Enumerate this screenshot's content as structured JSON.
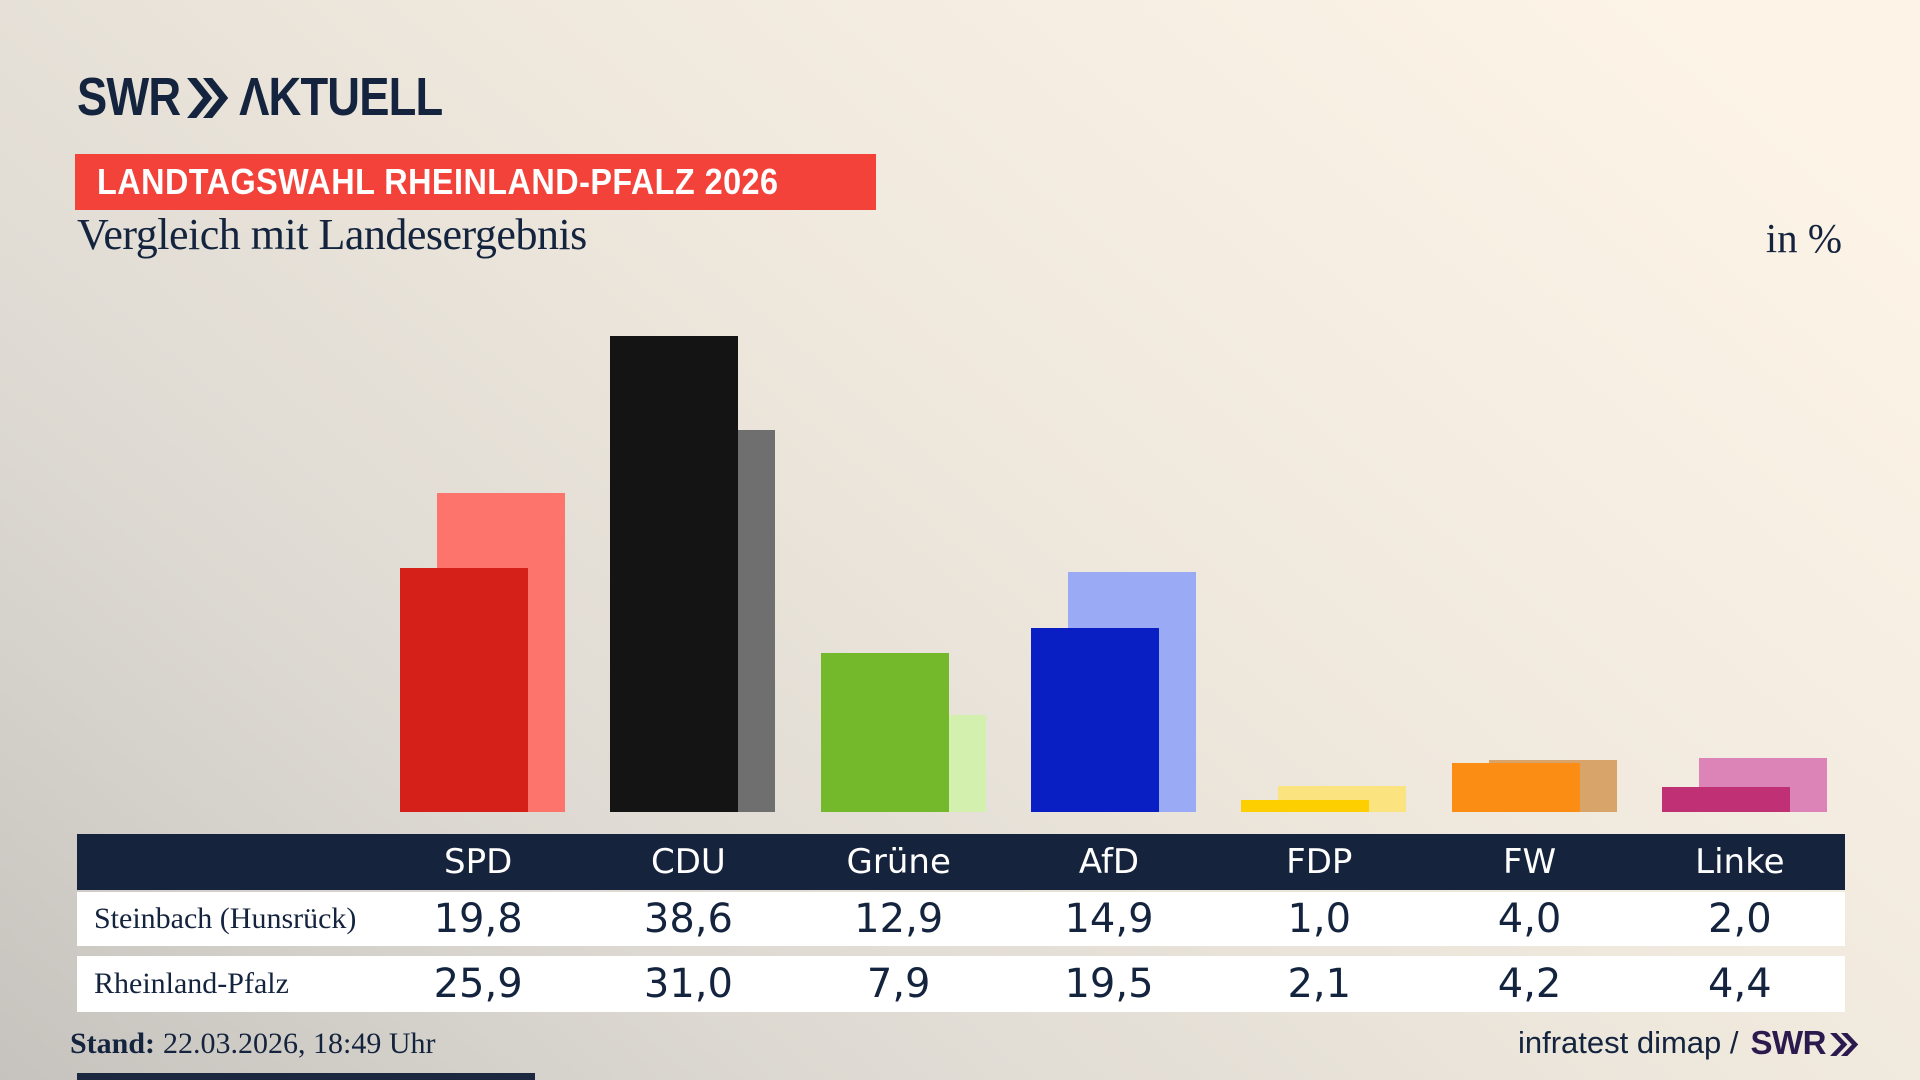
{
  "header": {
    "logo": {
      "brand": "SWR",
      "suffix": "ΛKTUELL",
      "chevron_icon": "double-chevron-right",
      "color": "#14243e"
    },
    "badge": {
      "text": "LANDTAGSWAHL RHEINLAND-PFALZ 2026",
      "background": "#f2423a",
      "text_color": "#ffffff"
    },
    "title": "Vergleich mit Landesergebnis",
    "unit_label": "in %"
  },
  "chart_data": {
    "type": "bar",
    "title": "Vergleich mit Landesergebnis",
    "unit": "in %",
    "categories": [
      "SPD",
      "CDU",
      "Grüne",
      "AfD",
      "FDP",
      "FW",
      "Linke"
    ],
    "series": [
      {
        "name": "Steinbach (Hunsrück)",
        "role": "foreground",
        "values": [
          19.8,
          38.6,
          12.9,
          14.9,
          1.0,
          4.0,
          2.0
        ],
        "value_labels": [
          "19,8",
          "38,6",
          "12,9",
          "14,9",
          "1,0",
          "4,0",
          "2,0"
        ],
        "colors": [
          "#d42019",
          "#141414",
          "#74b82c",
          "#0a1fc3",
          "#fdce00",
          "#fb8d14",
          "#bf3075"
        ]
      },
      {
        "name": "Rheinland-Pfalz",
        "role": "background",
        "values": [
          25.9,
          31.0,
          7.9,
          19.5,
          2.1,
          4.2,
          4.4
        ],
        "value_labels": [
          "25,9",
          "31,0",
          "7,9",
          "19,5",
          "2,1",
          "4,2",
          "4,4"
        ],
        "colors": [
          "#fc746c",
          "#6f6f6f",
          "#d3f0ae",
          "#9aaaf5",
          "#fbe47f",
          "#d8a469",
          "#dc83b8"
        ]
      }
    ],
    "ylim": [
      0,
      40
    ],
    "axis_hidden": true,
    "grid": false,
    "legend_position": "table-below-chart"
  },
  "footer": {
    "stand_label": "Stand:",
    "stand_value": "22.03.2026, 18:49 Uhr",
    "attribution": "infratest dimap /",
    "attribution_brand": "SWR",
    "attribution_brand_color": "#2b1a4e"
  }
}
